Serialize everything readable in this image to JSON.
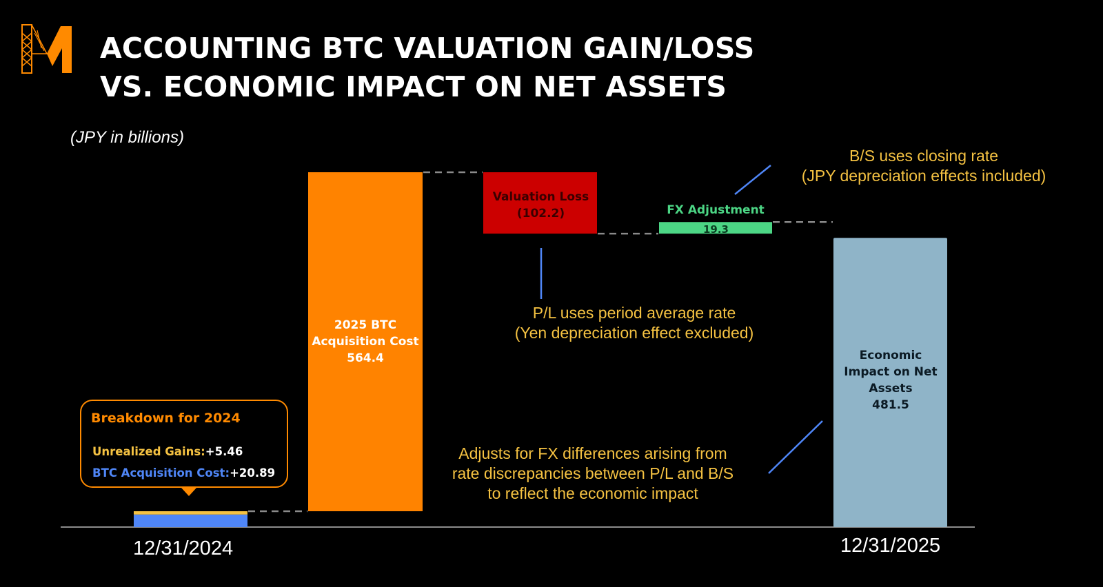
{
  "title_line1": "ACCOUNTING BTC VALUATION GAIN/LOSS",
  "title_line2": "VS. ECONOMIC IMPACT ON NET ASSETS",
  "units": "(JPY in billions)",
  "colors": {
    "logo": "#ff8a00",
    "acquisition_cost": "#ff8300",
    "valuation_loss": "#cc0000",
    "fx_adjustment": "#4cd685",
    "economic_impact": "#8fb4c8",
    "start_unrealized": "#f5c242",
    "start_btc_cost": "#4f86f7",
    "callout_text": "#f5c242",
    "callout_line": "#4f86f7",
    "connector": "#8a8a8a"
  },
  "chart_data": {
    "type": "waterfall",
    "title": "ACCOUNTING BTC VALUATION GAIN/LOSS VS. ECONOMIC IMPACT ON NET ASSETS",
    "units": "(JPY in billions)",
    "x_labels": [
      "12/31/2024",
      "12/31/2025"
    ],
    "steps": [
      {
        "id": "start",
        "kind": "start",
        "value": 26.35,
        "components": [
          {
            "name": "Unrealized Gains",
            "value": 5.46
          },
          {
            "name": "BTC Acquisition Cost",
            "value": 20.89
          }
        ]
      },
      {
        "id": "acq",
        "kind": "increase",
        "label_lines": [
          "2025 BTC",
          "Acquisition Cost",
          "564.4"
        ],
        "value": 564.4
      },
      {
        "id": "loss",
        "kind": "decrease",
        "label_lines": [
          "Valuation Loss",
          "(102.2)"
        ],
        "value": -102.2
      },
      {
        "id": "fx",
        "kind": "increase",
        "label": "FX Adjustment",
        "value_label": "19.3",
        "value": 19.3
      },
      {
        "id": "impact",
        "kind": "total",
        "label_lines": [
          "Economic",
          "Impact on Net",
          "Assets",
          "481.5"
        ],
        "value": 481.5
      }
    ],
    "ylim": [
      0,
      600
    ],
    "grid": false,
    "legend": "none"
  },
  "breakdown": {
    "title": "Breakdown for 2024",
    "rows": [
      {
        "key": "Unrealized Gains:",
        "value": "+5.46"
      },
      {
        "key": "BTC Acquisition Cost:",
        "value": "+20.89"
      }
    ]
  },
  "notes": {
    "bs": [
      "B/S uses closing rate",
      "(JPY depreciation effects included)"
    ],
    "pl": [
      "P/L uses period average rate",
      "(Yen depreciation effect excluded)"
    ],
    "adjust": [
      "Adjusts for FX differences arising from",
      "rate discrepancies between P/L and B/S",
      "to reflect the economic impact"
    ]
  }
}
